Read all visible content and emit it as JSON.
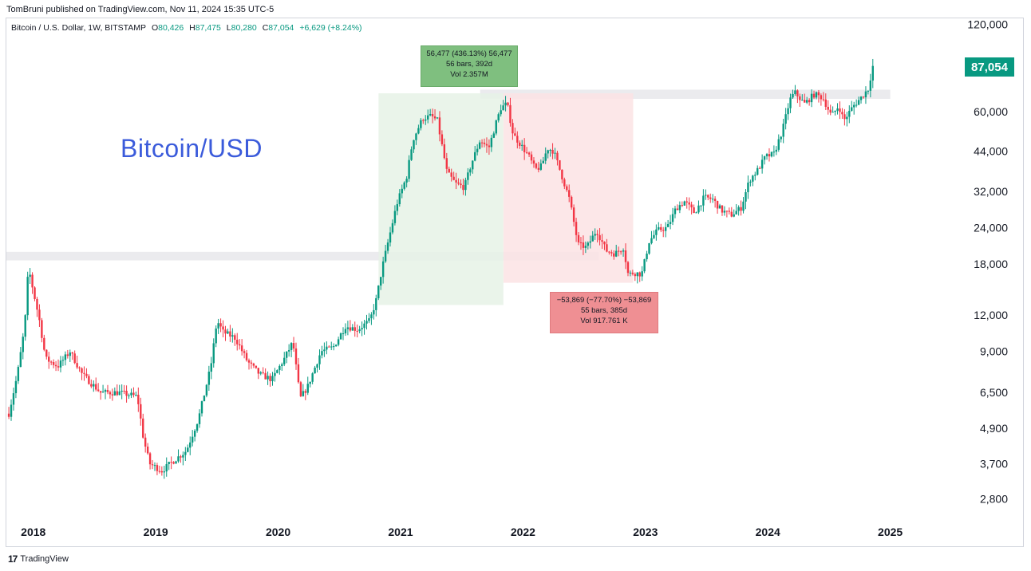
{
  "header": {
    "published_line": "TomBruni published on TradingView.com, Nov 11, 2024 15:35 UTC-5"
  },
  "ohlc_line": {
    "symbol": "Bitcoin / U.S. Dollar, 1W, BITSTAMP",
    "open_key": "O",
    "open": "80,426",
    "high_key": "H",
    "high": "87,475",
    "low_key": "L",
    "low": "80,280",
    "close_key": "C",
    "close": "87,054",
    "change": "+6,629 (+8.24%)"
  },
  "watermark": "Bitcoin/USD",
  "last_price": "87,054",
  "measure_up": {
    "line1": "56,477 (436.13%) 56,477",
    "line2": "56 bars, 392d",
    "line3": "Vol 2.357M"
  },
  "measure_down": {
    "line1": "−53,869 (−77.70%) −53,869",
    "line2": "55 bars, 385d",
    "line3": "Vol 917.761 K"
  },
  "footer": {
    "logo_text": "TradingView",
    "logo_mark": "17"
  },
  "colors": {
    "up": "#089981",
    "down": "#f23645",
    "up_box": "#e6f2e6",
    "down_box": "#fbe3e4",
    "zone": "#e9e9ec",
    "watermark": "#3b5bdb"
  },
  "chart_data": {
    "type": "candlestick",
    "title": "Bitcoin / U.S. Dollar, 1W, BITSTAMP",
    "xlabel": "",
    "ylabel": "",
    "scale": "log",
    "ylim": [
      2400,
      125000
    ],
    "y_ticks": [
      "120,000",
      "60,000",
      "44,000",
      "32,000",
      "24,000",
      "18,000",
      "12,000",
      "9,000",
      "6,500",
      "4,900",
      "3,700",
      "2,800"
    ],
    "y_tick_values": [
      120000,
      60000,
      44000,
      32000,
      24000,
      18000,
      12000,
      9000,
      6500,
      4900,
      3700,
      2800
    ],
    "x_ticks": [
      "2018",
      "2019",
      "2020",
      "2021",
      "2022",
      "2023",
      "2024",
      "2025"
    ],
    "x_tick_values": [
      2018.0,
      2019.0,
      2020.0,
      2021.0,
      2022.0,
      2023.0,
      2024.0,
      2025.0
    ],
    "xlim": [
      2017.78,
      2025.55
    ],
    "price_path": [
      [
        2017.8,
        5500
      ],
      [
        2017.87,
        7500
      ],
      [
        2017.93,
        11000
      ],
      [
        2017.96,
        17500
      ],
      [
        2018.0,
        14500
      ],
      [
        2018.05,
        11500
      ],
      [
        2018.1,
        8500
      ],
      [
        2018.2,
        8000
      ],
      [
        2018.3,
        9000
      ],
      [
        2018.4,
        7500
      ],
      [
        2018.55,
        6500
      ],
      [
        2018.7,
        6500
      ],
      [
        2018.85,
        6300
      ],
      [
        2018.9,
        4500
      ],
      [
        2018.95,
        3700
      ],
      [
        2019.05,
        3500
      ],
      [
        2019.15,
        3800
      ],
      [
        2019.25,
        4100
      ],
      [
        2019.35,
        5300
      ],
      [
        2019.45,
        8000
      ],
      [
        2019.5,
        11500
      ],
      [
        2019.55,
        10500
      ],
      [
        2019.65,
        10000
      ],
      [
        2019.75,
        8300
      ],
      [
        2019.85,
        7500
      ],
      [
        2019.95,
        7200
      ],
      [
        2020.05,
        8500
      ],
      [
        2020.12,
        9700
      ],
      [
        2020.18,
        6200
      ],
      [
        2020.24,
        6800
      ],
      [
        2020.35,
        9000
      ],
      [
        2020.45,
        9300
      ],
      [
        2020.55,
        11000
      ],
      [
        2020.65,
        10700
      ],
      [
        2020.75,
        11500
      ],
      [
        2020.8,
        13500
      ],
      [
        2020.85,
        17500
      ],
      [
        2020.92,
        23500
      ],
      [
        2020.97,
        29000
      ],
      [
        2021.05,
        36000
      ],
      [
        2021.1,
        48000
      ],
      [
        2021.18,
        57000
      ],
      [
        2021.25,
        58000
      ],
      [
        2021.3,
        56000
      ],
      [
        2021.38,
        37000
      ],
      [
        2021.45,
        34000
      ],
      [
        2021.52,
        33000
      ],
      [
        2021.58,
        40000
      ],
      [
        2021.65,
        48000
      ],
      [
        2021.72,
        45000
      ],
      [
        2021.78,
        55000
      ],
      [
        2021.82,
        62000
      ],
      [
        2021.87,
        64000
      ],
      [
        2021.92,
        50000
      ],
      [
        2021.97,
        47000
      ],
      [
        2022.05,
        42000
      ],
      [
        2022.1,
        38000
      ],
      [
        2022.15,
        39000
      ],
      [
        2022.2,
        45000
      ],
      [
        2022.25,
        44000
      ],
      [
        2022.3,
        38000
      ],
      [
        2022.38,
        30000
      ],
      [
        2022.45,
        21000
      ],
      [
        2022.52,
        20500
      ],
      [
        2022.6,
        23500
      ],
      [
        2022.68,
        20000
      ],
      [
        2022.75,
        19500
      ],
      [
        2022.82,
        20500
      ],
      [
        2022.86,
        16500
      ],
      [
        2022.9,
        16800
      ],
      [
        2022.97,
        16600
      ],
      [
        2023.03,
        21500
      ],
      [
        2023.1,
        23500
      ],
      [
        2023.18,
        24000
      ],
      [
        2023.25,
        28000
      ],
      [
        2023.32,
        29500
      ],
      [
        2023.4,
        27000
      ],
      [
        2023.48,
        30500
      ],
      [
        2023.55,
        30000
      ],
      [
        2023.62,
        27500
      ],
      [
        2023.7,
        26500
      ],
      [
        2023.78,
        28000
      ],
      [
        2023.85,
        35000
      ],
      [
        2023.92,
        38000
      ],
      [
        2023.98,
        42000
      ],
      [
        2024.05,
        43000
      ],
      [
        2024.12,
        52000
      ],
      [
        2024.18,
        66000
      ],
      [
        2024.22,
        70000
      ],
      [
        2024.3,
        64000
      ],
      [
        2024.38,
        69000
      ],
      [
        2024.45,
        67000
      ],
      [
        2024.52,
        58000
      ],
      [
        2024.58,
        63000
      ],
      [
        2024.62,
        56000
      ],
      [
        2024.7,
        63000
      ],
      [
        2024.76,
        67000
      ],
      [
        2024.82,
        72000
      ],
      [
        2024.86,
        87054
      ]
    ],
    "up_range": {
      "x0": 2020.82,
      "x1": 2021.84,
      "y_low": 13000,
      "y_high": 69500,
      "change": "56,477 (436.13%)",
      "bars": 56,
      "days": 392,
      "volume": "2.357M"
    },
    "down_range": {
      "x0": 2021.84,
      "x1": 2022.9,
      "y_low": 15500,
      "y_high": 69500,
      "change": "−53,869 (−77.70%)",
      "bars": 55,
      "days": 385,
      "volume": "917.761 K"
    },
    "resistance_zones": [
      {
        "x0": 2017.78,
        "x1": 2022.62,
        "y_low": 18500,
        "y_high": 19800
      },
      {
        "x0": 2021.65,
        "x1": 2025.0,
        "y_low": 66500,
        "y_high": 71500
      }
    ]
  }
}
